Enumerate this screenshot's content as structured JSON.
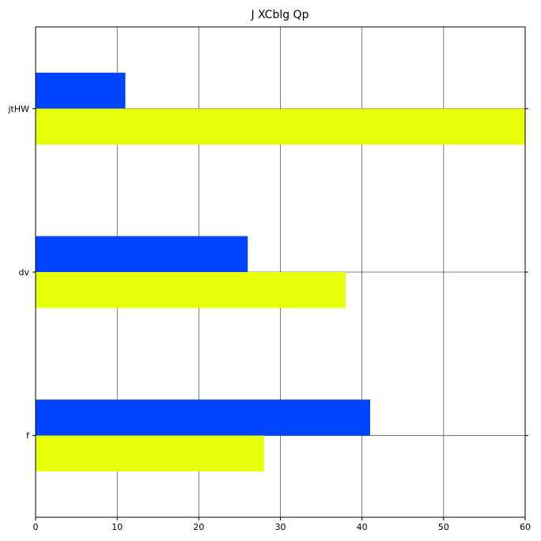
{
  "chart_data": {
    "type": "bar",
    "orientation": "horizontal",
    "title": "J XCblg Qp",
    "xlabel": "",
    "ylabel": "",
    "categories": [
      "jtHW",
      "dv",
      "f"
    ],
    "series": [
      {
        "color": "#0044ff",
        "values": [
          11,
          26,
          41
        ]
      },
      {
        "color": "#e6ff0a",
        "values": [
          60,
          38,
          28
        ]
      }
    ],
    "xlim": [
      0,
      60
    ],
    "xticks": [
      0,
      10,
      20,
      30,
      40,
      50,
      60
    ],
    "grid": true,
    "legend": "none"
  }
}
